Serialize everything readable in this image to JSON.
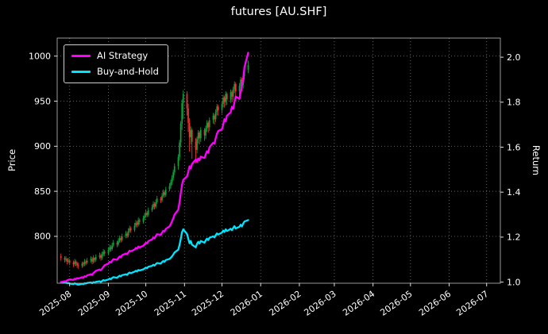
{
  "chart_data": {
    "type": "candlestick+line",
    "title": "futures [AU.SHF]",
    "ylabel_left": "Price",
    "ylabel_right": "Return",
    "legend_position": "upper-left",
    "grid": "dotted",
    "colors": {
      "background": "#000000",
      "text": "#ffffff",
      "grid": "#8f8f8f",
      "frame": "#aaaaaa",
      "candle_up": "#0ca13a",
      "candle_down": "#ef3333"
    },
    "x_range": [
      "2025-07-22",
      "2026-07-12"
    ],
    "x_ticks": [
      {
        "date": "2025-08-01",
        "label": "2025-08"
      },
      {
        "date": "2025-09-01",
        "label": "2025-09"
      },
      {
        "date": "2025-10-01",
        "label": "2025-10"
      },
      {
        "date": "2025-11-01",
        "label": "2025-11"
      },
      {
        "date": "2025-12-01",
        "label": "2025-12"
      },
      {
        "date": "2026-01-01",
        "label": "2026-01"
      },
      {
        "date": "2026-02-01",
        "label": "2026-02"
      },
      {
        "date": "2026-03-01",
        "label": "2026-03"
      },
      {
        "date": "2026-04-01",
        "label": "2026-04"
      },
      {
        "date": "2026-05-01",
        "label": "2026-05"
      },
      {
        "date": "2026-06-01",
        "label": "2026-06"
      },
      {
        "date": "2026-07-01",
        "label": "2026-07"
      }
    ],
    "y_left": {
      "lim": [
        748,
        1020
      ],
      "ticks": [
        {
          "v": 800,
          "label": "800"
        },
        {
          "v": 850,
          "label": "850"
        },
        {
          "v": 900,
          "label": "900"
        },
        {
          "v": 950,
          "label": "950"
        },
        {
          "v": 1000,
          "label": "1000"
        }
      ]
    },
    "y_right": {
      "lim": [
        0.995,
        2.085
      ],
      "ticks": [
        {
          "v": 1.0,
          "label": "1.0"
        },
        {
          "v": 1.2,
          "label": "1.2"
        },
        {
          "v": 1.4,
          "label": "1.4"
        },
        {
          "v": 1.6,
          "label": "1.6"
        },
        {
          "v": 1.8,
          "label": "1.8"
        },
        {
          "v": 2.0,
          "label": "2.0"
        }
      ]
    },
    "dates": [
      "2025-07-25",
      "2025-07-28",
      "2025-07-29",
      "2025-07-30",
      "2025-07-31",
      "2025-08-01",
      "2025-08-04",
      "2025-08-05",
      "2025-08-06",
      "2025-08-07",
      "2025-08-08",
      "2025-08-11",
      "2025-08-12",
      "2025-08-13",
      "2025-08-14",
      "2025-08-15",
      "2025-08-18",
      "2025-08-19",
      "2025-08-20",
      "2025-08-21",
      "2025-08-22",
      "2025-08-25",
      "2025-08-26",
      "2025-08-27",
      "2025-08-28",
      "2025-08-29",
      "2025-09-01",
      "2025-09-02",
      "2025-09-03",
      "2025-09-04",
      "2025-09-05",
      "2025-09-08",
      "2025-09-09",
      "2025-09-10",
      "2025-09-11",
      "2025-09-12",
      "2025-09-15",
      "2025-09-16",
      "2025-09-17",
      "2025-09-18",
      "2025-09-19",
      "2025-09-22",
      "2025-09-23",
      "2025-09-24",
      "2025-09-25",
      "2025-09-26",
      "2025-09-29",
      "2025-09-30",
      "2025-10-01",
      "2025-10-02",
      "2025-10-03",
      "2025-10-06",
      "2025-10-07",
      "2025-10-08",
      "2025-10-09",
      "2025-10-10",
      "2025-10-13",
      "2025-10-14",
      "2025-10-15",
      "2025-10-16",
      "2025-10-17",
      "2025-10-20",
      "2025-10-21",
      "2025-10-22",
      "2025-10-23",
      "2025-10-24",
      "2025-10-27",
      "2025-10-28",
      "2025-10-29",
      "2025-10-30",
      "2025-10-31",
      "2025-11-03",
      "2025-11-04",
      "2025-11-05",
      "2025-11-06",
      "2025-11-07",
      "2025-11-10",
      "2025-11-11",
      "2025-11-12",
      "2025-11-13",
      "2025-11-14",
      "2025-11-17",
      "2025-11-18",
      "2025-11-19",
      "2025-11-20",
      "2025-11-21",
      "2025-11-24",
      "2025-11-25",
      "2025-11-26",
      "2025-11-27",
      "2025-11-28",
      "2025-12-01",
      "2025-12-02",
      "2025-12-03",
      "2025-12-04",
      "2025-12-05",
      "2025-12-08",
      "2025-12-09",
      "2025-12-10",
      "2025-12-11",
      "2025-12-12",
      "2025-12-15",
      "2025-12-16",
      "2025-12-17",
      "2025-12-18",
      "2025-12-19",
      "2025-12-22"
    ],
    "ohlc": [
      [
        778,
        781,
        773,
        776
      ],
      [
        776,
        778,
        771,
        774
      ],
      [
        774,
        778,
        772,
        775
      ],
      [
        775,
        776,
        769,
        772
      ],
      [
        772,
        776,
        770,
        773
      ],
      [
        773,
        775,
        768,
        771
      ],
      [
        771,
        773,
        766,
        769
      ],
      [
        769,
        775,
        767,
        772
      ],
      [
        772,
        774,
        767,
        770
      ],
      [
        770,
        772,
        765,
        768
      ],
      [
        768,
        771,
        764,
        767
      ],
      [
        767,
        772,
        765,
        770
      ],
      [
        770,
        772,
        766,
        769
      ],
      [
        769,
        775,
        767,
        772
      ],
      [
        772,
        774,
        768,
        771
      ],
      [
        771,
        776,
        769,
        773
      ],
      [
        773,
        778,
        771,
        775
      ],
      [
        775,
        777,
        769,
        772
      ],
      [
        772,
        779,
        770,
        776
      ],
      [
        776,
        777,
        771,
        774
      ],
      [
        774,
        780,
        772,
        777
      ],
      [
        777,
        782,
        775,
        779
      ],
      [
        779,
        781,
        773,
        776
      ],
      [
        776,
        783,
        774,
        780
      ],
      [
        780,
        786,
        778,
        783
      ],
      [
        783,
        785,
        778,
        781
      ],
      [
        781,
        788,
        779,
        785
      ],
      [
        785,
        791,
        783,
        788
      ],
      [
        788,
        790,
        783,
        786
      ],
      [
        786,
        793,
        784,
        790
      ],
      [
        790,
        796,
        788,
        793
      ],
      [
        793,
        795,
        788,
        791
      ],
      [
        791,
        798,
        789,
        795
      ],
      [
        795,
        801,
        793,
        798
      ],
      [
        798,
        800,
        793,
        796
      ],
      [
        796,
        803,
        794,
        800
      ],
      [
        800,
        806,
        798,
        803
      ],
      [
        803,
        805,
        798,
        801
      ],
      [
        801,
        809,
        799,
        806
      ],
      [
        806,
        812,
        804,
        809
      ],
      [
        809,
        811,
        804,
        807
      ],
      [
        807,
        815,
        805,
        812
      ],
      [
        812,
        818,
        810,
        815
      ],
      [
        815,
        817,
        810,
        813
      ],
      [
        813,
        821,
        811,
        818
      ],
      [
        818,
        820,
        813,
        816
      ],
      [
        816,
        823,
        814,
        820
      ],
      [
        820,
        826,
        818,
        823
      ],
      [
        823,
        829,
        821,
        826
      ],
      [
        826,
        828,
        821,
        824
      ],
      [
        824,
        832,
        822,
        829
      ],
      [
        829,
        835,
        827,
        832
      ],
      [
        832,
        839,
        830,
        836
      ],
      [
        836,
        838,
        830,
        833
      ],
      [
        833,
        841,
        831,
        838
      ],
      [
        838,
        845,
        836,
        842
      ],
      [
        842,
        844,
        837,
        840
      ],
      [
        840,
        848,
        838,
        845
      ],
      [
        845,
        852,
        843,
        849
      ],
      [
        849,
        851,
        843,
        846
      ],
      [
        846,
        855,
        844,
        852
      ],
      [
        852,
        859,
        850,
        856
      ],
      [
        856,
        863,
        853,
        860
      ],
      [
        860,
        868,
        857,
        865
      ],
      [
        865,
        874,
        862,
        871
      ],
      [
        871,
        881,
        868,
        878
      ],
      [
        878,
        891,
        874,
        888
      ],
      [
        888,
        907,
        884,
        904
      ],
      [
        904,
        928,
        899,
        925
      ],
      [
        925,
        952,
        918,
        948
      ],
      [
        948,
        962,
        930,
        958
      ],
      [
        958,
        961,
        934,
        942
      ],
      [
        942,
        947,
        916,
        926
      ],
      [
        926,
        931,
        894,
        910
      ],
      [
        910,
        922,
        902,
        918
      ],
      [
        918,
        920,
        886,
        905
      ],
      [
        905,
        909,
        881,
        896
      ],
      [
        896,
        911,
        892,
        908
      ],
      [
        908,
        918,
        903,
        915
      ],
      [
        915,
        917,
        902,
        909
      ],
      [
        909,
        921,
        905,
        918
      ],
      [
        918,
        920,
        906,
        912
      ],
      [
        912,
        923,
        908,
        920
      ],
      [
        920,
        929,
        916,
        926
      ],
      [
        926,
        928,
        915,
        921
      ],
      [
        921,
        932,
        917,
        929
      ],
      [
        929,
        937,
        925,
        934
      ],
      [
        934,
        936,
        924,
        930
      ],
      [
        930,
        941,
        927,
        938
      ],
      [
        938,
        947,
        934,
        944
      ],
      [
        944,
        946,
        934,
        940
      ],
      [
        940,
        950,
        936,
        947
      ],
      [
        947,
        957,
        943,
        954
      ],
      [
        954,
        956,
        943,
        949
      ],
      [
        949,
        961,
        945,
        958
      ],
      [
        958,
        960,
        946,
        952
      ],
      [
        952,
        963,
        948,
        960
      ],
      [
        960,
        962,
        949,
        955
      ],
      [
        955,
        966,
        951,
        963
      ],
      [
        963,
        972,
        959,
        969
      ],
      [
        969,
        971,
        955,
        961
      ],
      [
        961,
        970,
        956,
        967
      ],
      [
        967,
        977,
        962,
        974
      ],
      [
        974,
        976,
        961,
        968
      ],
      [
        968,
        981,
        964,
        978
      ],
      [
        978,
        988,
        974,
        985
      ],
      [
        985,
        995,
        981,
        990
      ]
    ],
    "series": [
      {
        "name": "AI Strategy",
        "color": "#ff00ff",
        "axis": "right",
        "values": [
          1.0,
          1.004,
          1.003,
          1.008,
          1.01,
          1.012,
          1.01,
          1.015,
          1.013,
          1.018,
          1.016,
          1.022,
          1.02,
          1.026,
          1.024,
          1.03,
          1.035,
          1.032,
          1.04,
          1.045,
          1.05,
          1.056,
          1.053,
          1.06,
          1.068,
          1.075,
          1.082,
          1.09,
          1.087,
          1.095,
          1.102,
          1.099,
          1.107,
          1.114,
          1.111,
          1.12,
          1.127,
          1.124,
          1.132,
          1.14,
          1.137,
          1.145,
          1.152,
          1.149,
          1.158,
          1.154,
          1.162,
          1.168,
          1.175,
          1.172,
          1.182,
          1.19,
          1.198,
          1.195,
          1.205,
          1.213,
          1.21,
          1.22,
          1.228,
          1.225,
          1.237,
          1.248,
          1.258,
          1.27,
          1.284,
          1.3,
          1.322,
          1.355,
          1.395,
          1.432,
          1.455,
          1.47,
          1.49,
          1.515,
          1.505,
          1.525,
          1.545,
          1.535,
          1.55,
          1.542,
          1.558,
          1.552,
          1.568,
          1.582,
          1.575,
          1.6,
          1.62,
          1.615,
          1.64,
          1.66,
          1.672,
          1.68,
          1.7,
          1.725,
          1.715,
          1.74,
          1.755,
          1.78,
          1.77,
          1.8,
          1.825,
          1.815,
          1.845,
          1.875,
          1.9,
          1.955,
          2.02
        ]
      },
      {
        "name": "Buy-and-Hold",
        "color": "#00e5ff",
        "axis": "right",
        "derived": "close[i] / close[0]"
      }
    ]
  }
}
